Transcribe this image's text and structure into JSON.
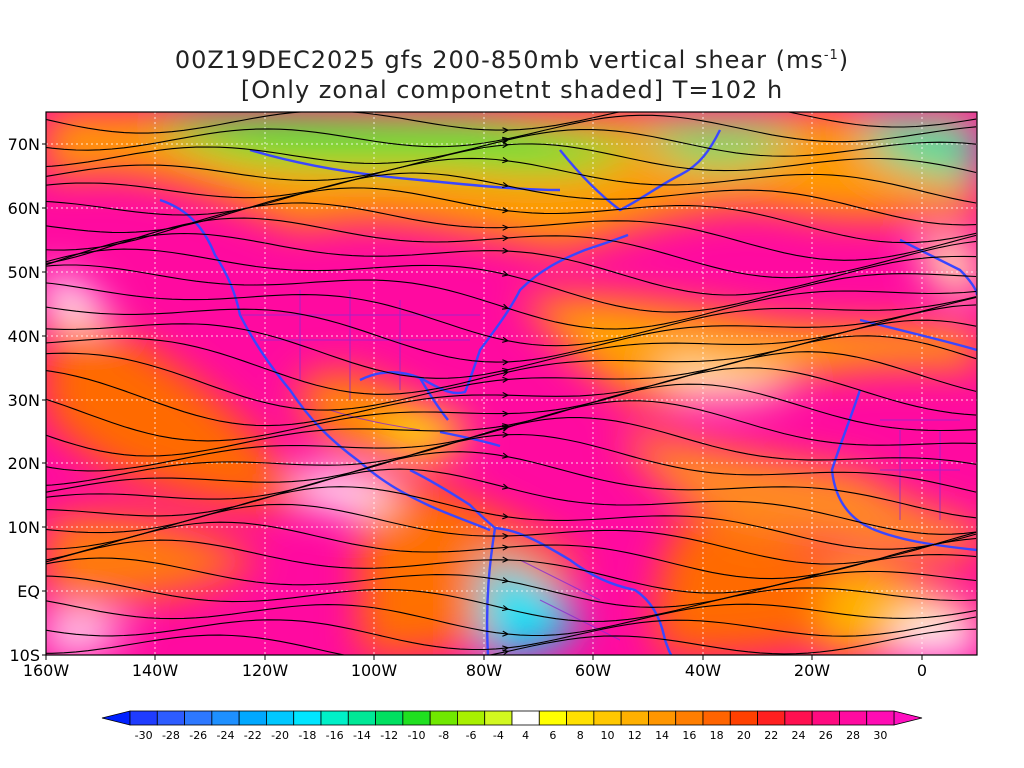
{
  "title": {
    "line1_prefix": "00Z19DEC2025 gfs 200-850mb vertical shear (ms",
    "line1_sup": "-1",
    "line1_suffix": ")",
    "line2": "[Only zonal componetnt shaded] T=102 h"
  },
  "map": {
    "lat_labels": [
      "70N",
      "60N",
      "50N",
      "40N",
      "30N",
      "20N",
      "10N",
      "EQ",
      "10S"
    ],
    "lon_labels": [
      "160W",
      "140W",
      "120W",
      "100W",
      "80W",
      "60W",
      "40W",
      "20W",
      "0"
    ],
    "region": {
      "lon_min": -160,
      "lon_max": 10,
      "lat_min": -10,
      "lat_max": 75
    },
    "overlays": [
      "shaded zonal shear",
      "streamlines",
      "coastlines",
      "political boundaries",
      "dotted lat/lon grid"
    ]
  },
  "colorbar": {
    "labels": [
      "-30",
      "-28",
      "-26",
      "-24",
      "-22",
      "-20",
      "-18",
      "-16",
      "-14",
      "-12",
      "-10",
      "-8",
      "-6",
      "-4",
      "4",
      "6",
      "8",
      "10",
      "12",
      "14",
      "16",
      "18",
      "20",
      "22",
      "24",
      "26",
      "28",
      "30"
    ],
    "colors": [
      "#1f3cff",
      "#2d5cff",
      "#2d78ff",
      "#1e90ff",
      "#00a8ff",
      "#00c8ff",
      "#00e5ff",
      "#00f0c8",
      "#00e896",
      "#00e060",
      "#20e020",
      "#70e800",
      "#a8f000",
      "#d2f820",
      "#ffffff",
      "#ffff00",
      "#ffe000",
      "#ffc800",
      "#ffb000",
      "#ff9600",
      "#ff7e00",
      "#ff6400",
      "#ff4000",
      "#ff2020",
      "#ff1050",
      "#ff0a80",
      "#ff0aa0",
      "#ff0cb4"
    ],
    "low_arrow_color": "#0020ff",
    "high_arrow_color": "#ff10c0"
  }
}
